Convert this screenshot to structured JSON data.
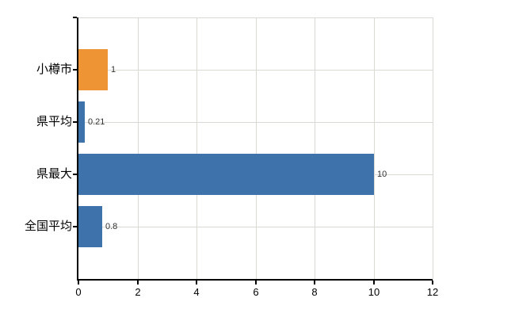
{
  "chart_data": {
    "type": "bar",
    "orientation": "horizontal",
    "title": "",
    "categories": [
      "小樽市",
      "県平均",
      "県最大",
      "全国平均"
    ],
    "values": [
      1,
      0.21,
      10,
      0.8
    ],
    "value_labels": [
      "1",
      "0.21",
      "10",
      "0.8"
    ],
    "bar_colors": [
      "#ee9434",
      "#3e72aa",
      "#3e72aa",
      "#3e72aa"
    ],
    "xlim": [
      0,
      12
    ],
    "x_ticks": [
      0,
      2,
      4,
      6,
      8,
      10,
      12
    ],
    "x_tick_labels": [
      "0",
      "2",
      "4",
      "6",
      "8",
      "10",
      "12"
    ],
    "grid": true,
    "legend": false,
    "colors": {
      "axis": "#000000",
      "gridline": "#d8dbd3",
      "category_text": "#000000",
      "value_text": "#333333",
      "background": "#ffffff"
    }
  }
}
